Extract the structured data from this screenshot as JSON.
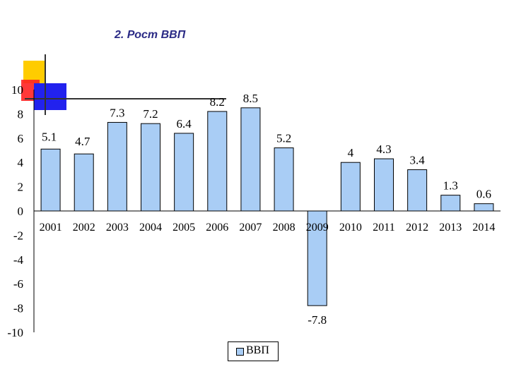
{
  "slide": {
    "title": "2. Рост ВВП"
  },
  "colors": {
    "bar_fill": "#a9cdf5",
    "bar_stroke": "#000000",
    "title_color": "#2b2b86",
    "deco_yellow": "#ffcc00",
    "deco_red": "#ff2222",
    "deco_blue": "#2222ee"
  },
  "chart_data": {
    "type": "bar",
    "title": "",
    "xlabel": "",
    "ylabel": "",
    "categories": [
      "2001",
      "2002",
      "2003",
      "2004",
      "2005",
      "2006",
      "2007",
      "2008",
      "2009",
      "2010",
      "2011",
      "2012",
      "2013",
      "2014"
    ],
    "series": [
      {
        "name": "ВВП",
        "values": [
          5.1,
          4.7,
          7.3,
          7.2,
          6.4,
          8.2,
          8.5,
          5.2,
          -7.8,
          4,
          4.3,
          3.4,
          1.3,
          0.6
        ]
      }
    ],
    "value_labels": [
      "5.1",
      "4.7",
      "7.3",
      "7.2",
      "6.4",
      "8.2",
      "8.5",
      "5.2",
      "-7.8",
      "4",
      "4.3",
      "3.4",
      "1.3",
      "0.6"
    ],
    "ylim": [
      -10,
      10
    ],
    "yticks": [
      "10",
      "8",
      "6",
      "4",
      "2",
      "0",
      "-2",
      "-4",
      "-6",
      "-8",
      "-10"
    ],
    "grid": false,
    "legend_position": "bottom"
  }
}
